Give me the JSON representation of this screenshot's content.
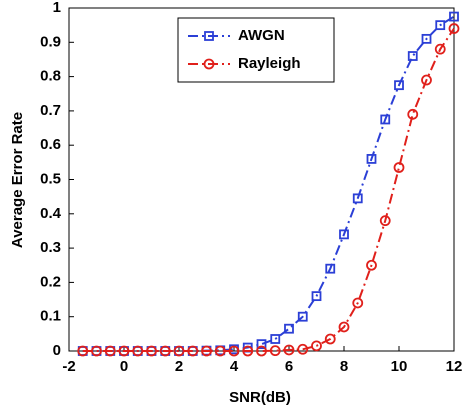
{
  "chart_data": {
    "type": "line",
    "x_label": "SNR(dB)",
    "y_label": "Average Error Rate",
    "x": [
      -1.5,
      -1,
      -0.5,
      0,
      0.5,
      1,
      1.5,
      2,
      2.5,
      3,
      3.5,
      4,
      4.5,
      5,
      5.5,
      6,
      6.5,
      7,
      7.5,
      8,
      8.5,
      9,
      9.5,
      10,
      10.5,
      11,
      11.5,
      12
    ],
    "series": [
      {
        "name": "AWGN",
        "color": "#2b3fd6",
        "marker": "square",
        "values": [
          0,
          0,
          0,
          0,
          0,
          0,
          0,
          0,
          0,
          0.001,
          0.002,
          0.005,
          0.01,
          0.02,
          0.035,
          0.065,
          0.1,
          0.16,
          0.24,
          0.34,
          0.445,
          0.56,
          0.675,
          0.775,
          0.86,
          0.91,
          0.95,
          0.975
        ]
      },
      {
        "name": "Rayleigh",
        "color": "#e0201b",
        "marker": "circle",
        "values": [
          0,
          0,
          0,
          0,
          0,
          0,
          0,
          0,
          0,
          0,
          0,
          0,
          0,
          0,
          0.001,
          0.003,
          0.005,
          0.015,
          0.035,
          0.07,
          0.14,
          0.25,
          0.38,
          0.535,
          0.69,
          0.79,
          0.88,
          0.94
        ]
      }
    ],
    "xlim": [
      -2,
      12
    ],
    "xticks": [
      -2,
      0,
      2,
      4,
      6,
      8,
      10,
      12
    ],
    "ylim": [
      0,
      1
    ],
    "yticks": [
      0,
      0.1,
      0.2,
      0.3,
      0.4,
      0.5,
      0.6,
      0.7,
      0.8,
      0.9,
      1
    ],
    "legend": "top-center"
  }
}
